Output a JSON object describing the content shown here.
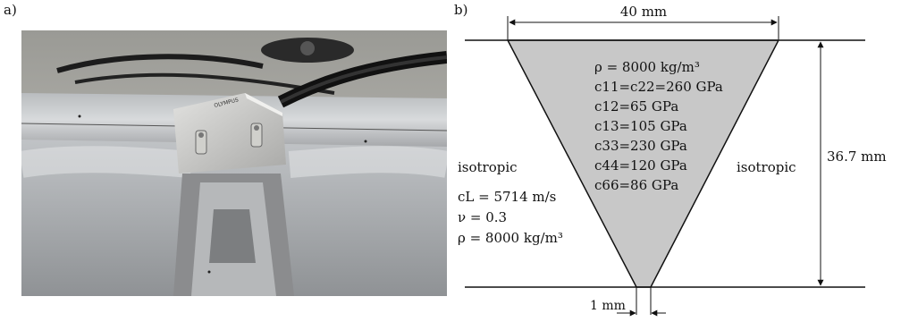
{
  "panels": {
    "a_label": "a)",
    "b_label": "b)"
  },
  "photo": {
    "brand_text": "OLYMPUS"
  },
  "diagram": {
    "top_dimension": "40 mm",
    "height_dimension": "36.7 mm",
    "bottom_dimension": "1 mm",
    "weld": {
      "density": "ρ = 8000 kg/m³",
      "c11_c22": "c11=c22=260 GPa",
      "c12": "c12=65 GPa",
      "c13": "c13=105 GPa",
      "c33": "c33=230 GPa",
      "c44": "c44=120 GPa",
      "c66": "c66=86 GPa"
    },
    "left_region": {
      "label": "isotropic",
      "cl": "cL = 5714 m/s",
      "nu": "ν = 0.3",
      "rho": "ρ = 8000 kg/m³"
    },
    "right_region": {
      "label": "isotropic"
    },
    "colors": {
      "weld_fill": "#c8c8c8",
      "line": "#111111"
    }
  }
}
